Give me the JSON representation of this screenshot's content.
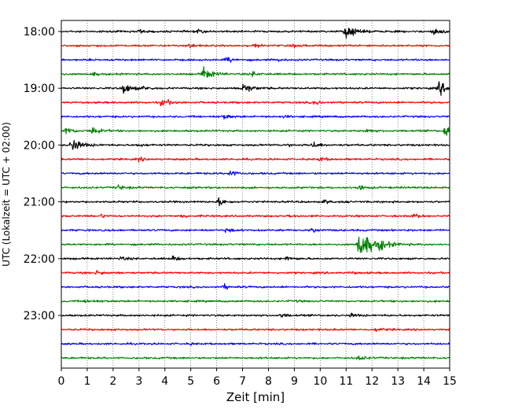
{
  "chart_data": {
    "type": "line",
    "title": "",
    "xlabel": "Zeit  [min]",
    "ylabel": "UTC (Lokalzeit = UTC + 02:00)",
    "xlim": [
      0,
      15
    ],
    "x_ticks": [
      "0",
      "1",
      "2",
      "3",
      "4",
      "5",
      "6",
      "7",
      "8",
      "9",
      "10",
      "11",
      "12",
      "13",
      "14",
      "15"
    ],
    "y_ticks": [
      "18:00",
      "19:00",
      "20:00",
      "21:00",
      "22:00",
      "23:00"
    ],
    "grid": "vertical dotted",
    "trace_interval_min": 15,
    "series_colors": [
      "#000000",
      "#ff0000",
      "#0000ff",
      "#008000"
    ],
    "traces": [
      {
        "start": "18:00",
        "color": "#000000",
        "events": [
          [
            3.0,
            0.4
          ],
          [
            5.3,
            0.35
          ],
          [
            11.0,
            1.6
          ],
          [
            14.4,
            0.8
          ]
        ]
      },
      {
        "start": "18:15",
        "color": "#ff0000",
        "events": [
          [
            4.9,
            0.5
          ],
          [
            7.5,
            0.3
          ],
          [
            9.0,
            0.3
          ]
        ]
      },
      {
        "start": "18:30",
        "color": "#0000ff",
        "events": [
          [
            6.4,
            0.6
          ],
          [
            8.4,
            0.25
          ]
        ]
      },
      {
        "start": "18:45",
        "color": "#008000",
        "events": [
          [
            1.2,
            0.35
          ],
          [
            5.5,
            1.4
          ],
          [
            7.4,
            0.5
          ]
        ]
      },
      {
        "start": "19:00",
        "color": "#000000",
        "events": [
          [
            2.4,
            1.2
          ],
          [
            3.2,
            0.4
          ],
          [
            7.0,
            1.3
          ],
          [
            14.6,
            1.4
          ]
        ]
      },
      {
        "start": "19:15",
        "color": "#ff0000",
        "events": [
          [
            3.9,
            0.9
          ],
          [
            9.8,
            0.45
          ]
        ]
      },
      {
        "start": "19:30",
        "color": "#0000ff",
        "events": [
          [
            6.3,
            0.55
          ],
          [
            8.6,
            0.2
          ]
        ]
      },
      {
        "start": "19:45",
        "color": "#008000",
        "events": [
          [
            0.2,
            0.8
          ],
          [
            1.2,
            0.9
          ],
          [
            11.8,
            0.45
          ],
          [
            14.85,
            1.6
          ]
        ]
      },
      {
        "start": "20:00",
        "color": "#000000",
        "events": [
          [
            0.4,
            1.6
          ],
          [
            3.0,
            0.3
          ],
          [
            8.7,
            0.3
          ],
          [
            9.7,
            0.8
          ]
        ]
      },
      {
        "start": "20:15",
        "color": "#ff0000",
        "events": [
          [
            3.0,
            0.4
          ],
          [
            10.0,
            0.4
          ]
        ]
      },
      {
        "start": "20:30",
        "color": "#0000ff",
        "events": [
          [
            6.5,
            0.7
          ]
        ]
      },
      {
        "start": "20:45",
        "color": "#008000",
        "events": [
          [
            2.2,
            0.55
          ],
          [
            11.5,
            0.55
          ]
        ]
      },
      {
        "start": "21:00",
        "color": "#000000",
        "events": [
          [
            6.1,
            0.85
          ],
          [
            10.2,
            0.35
          ]
        ]
      },
      {
        "start": "21:15",
        "color": "#ff0000",
        "events": [
          [
            1.5,
            0.4
          ],
          [
            4.7,
            0.3
          ],
          [
            8.8,
            0.3
          ],
          [
            13.6,
            0.6
          ]
        ]
      },
      {
        "start": "21:30",
        "color": "#0000ff",
        "events": [
          [
            6.4,
            0.45
          ],
          [
            9.7,
            0.5
          ]
        ]
      },
      {
        "start": "21:45",
        "color": "#008000",
        "events": [
          [
            11.5,
            3.2
          ],
          [
            12.3,
            0.8
          ]
        ]
      },
      {
        "start": "22:00",
        "color": "#000000",
        "events": [
          [
            2.3,
            0.4
          ],
          [
            4.3,
            0.5
          ],
          [
            8.7,
            0.5
          ]
        ]
      },
      {
        "start": "22:15",
        "color": "#ff0000",
        "events": [
          [
            1.4,
            0.55
          ],
          [
            11.2,
            0.3
          ]
        ]
      },
      {
        "start": "22:30",
        "color": "#0000ff",
        "events": [
          [
            6.3,
            0.5
          ]
        ]
      },
      {
        "start": "22:45",
        "color": "#008000",
        "events": [
          [
            1.0,
            0.45
          ],
          [
            9.0,
            0.2
          ]
        ]
      },
      {
        "start": "23:00",
        "color": "#000000",
        "events": [
          [
            8.5,
            0.45
          ],
          [
            11.2,
            0.4
          ]
        ]
      },
      {
        "start": "23:15",
        "color": "#ff0000",
        "events": [
          [
            12.2,
            0.4
          ]
        ]
      },
      {
        "start": "23:30",
        "color": "#0000ff",
        "events": [
          [
            5.0,
            0.15
          ]
        ]
      },
      {
        "start": "23:45",
        "color": "#008000",
        "events": [
          [
            11.5,
            0.55
          ]
        ]
      }
    ]
  }
}
